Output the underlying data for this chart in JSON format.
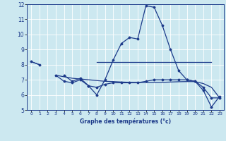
{
  "xlabel": "Graphe des températures (°c)",
  "bg_color": "#cce8f0",
  "grid_color": "#ffffff",
  "line_color": "#1c3a8a",
  "hours": [
    0,
    1,
    2,
    3,
    4,
    5,
    6,
    7,
    8,
    9,
    10,
    11,
    12,
    13,
    14,
    15,
    16,
    17,
    18,
    19,
    20,
    21,
    22,
    23
  ],
  "temp_line": [
    8.2,
    8.0,
    null,
    null,
    7.3,
    6.9,
    7.1,
    6.6,
    6.0,
    7.0,
    8.3,
    9.4,
    9.8,
    9.7,
    11.9,
    11.8,
    10.6,
    9.0,
    7.6,
    7.0,
    6.9,
    6.3,
    5.2,
    5.9
  ],
  "line2": [
    8.2,
    8.0,
    null,
    null,
    null,
    null,
    null,
    null,
    8.15,
    8.15,
    8.15,
    8.15,
    8.15,
    8.15,
    8.15,
    8.15,
    8.15,
    8.15,
    8.15,
    8.15,
    8.15,
    8.15,
    8.15,
    null
  ],
  "line3": [
    null,
    null,
    null,
    7.3,
    7.2,
    7.1,
    7.05,
    7.0,
    6.95,
    6.9,
    6.88,
    6.85,
    6.83,
    6.82,
    6.82,
    6.82,
    6.83,
    6.85,
    6.87,
    6.88,
    6.88,
    6.75,
    6.5,
    5.8
  ],
  "line4": [
    null,
    null,
    null,
    7.3,
    6.9,
    6.8,
    7.0,
    6.6,
    6.5,
    6.7,
    6.8,
    6.8,
    6.8,
    6.8,
    6.9,
    7.0,
    7.0,
    7.0,
    7.0,
    7.0,
    6.9,
    6.5,
    5.8,
    5.8
  ],
  "ylim": [
    5,
    12
  ],
  "yticks": [
    5,
    6,
    7,
    8,
    9,
    10,
    11,
    12
  ],
  "xlim": [
    -0.5,
    23.5
  ]
}
